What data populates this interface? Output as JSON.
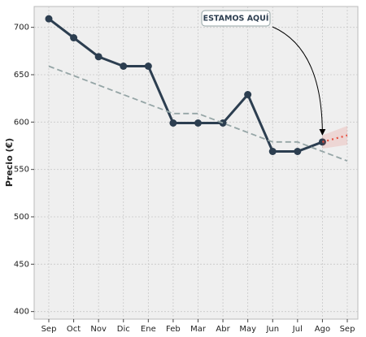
{
  "chart_data": {
    "type": "line",
    "y_label": "Precio (€)",
    "categories": [
      "Sep",
      "Oct",
      "Nov",
      "Dic",
      "Ene",
      "Feb",
      "Mar",
      "Abr",
      "May",
      "Jun",
      "Jul",
      "Ago",
      "Sep"
    ],
    "series": [
      {
        "color": "#2c3e50",
        "style": "solid-markers",
        "values": [
          709,
          689,
          669,
          659,
          659,
          599,
          599,
          599,
          629,
          569,
          569,
          579,
          null
        ]
      },
      {
        "color": "#95a5a6",
        "style": "dashed",
        "values": [
          659,
          649,
          639,
          629,
          619,
          609,
          609,
          599,
          589,
          579,
          579,
          569,
          559
        ]
      },
      {
        "color": "#e74c3c",
        "style": "dotted",
        "values": [
          null,
          null,
          null,
          null,
          null,
          null,
          null,
          null,
          null,
          null,
          null,
          579,
          586
        ],
        "band_lower": [
          null,
          null,
          null,
          null,
          null,
          null,
          null,
          null,
          null,
          null,
          null,
          572,
          576
        ],
        "band_upper": [
          null,
          null,
          null,
          null,
          null,
          null,
          null,
          null,
          null,
          null,
          null,
          586,
          596
        ]
      }
    ],
    "ylim": [
      392,
      722
    ],
    "yticks": [
      400,
      450,
      500,
      550,
      600,
      650,
      700
    ],
    "grid": true,
    "annotation": {
      "text": "ESTAMOS AQUÍ",
      "x": "Ago",
      "y": 579
    }
  }
}
